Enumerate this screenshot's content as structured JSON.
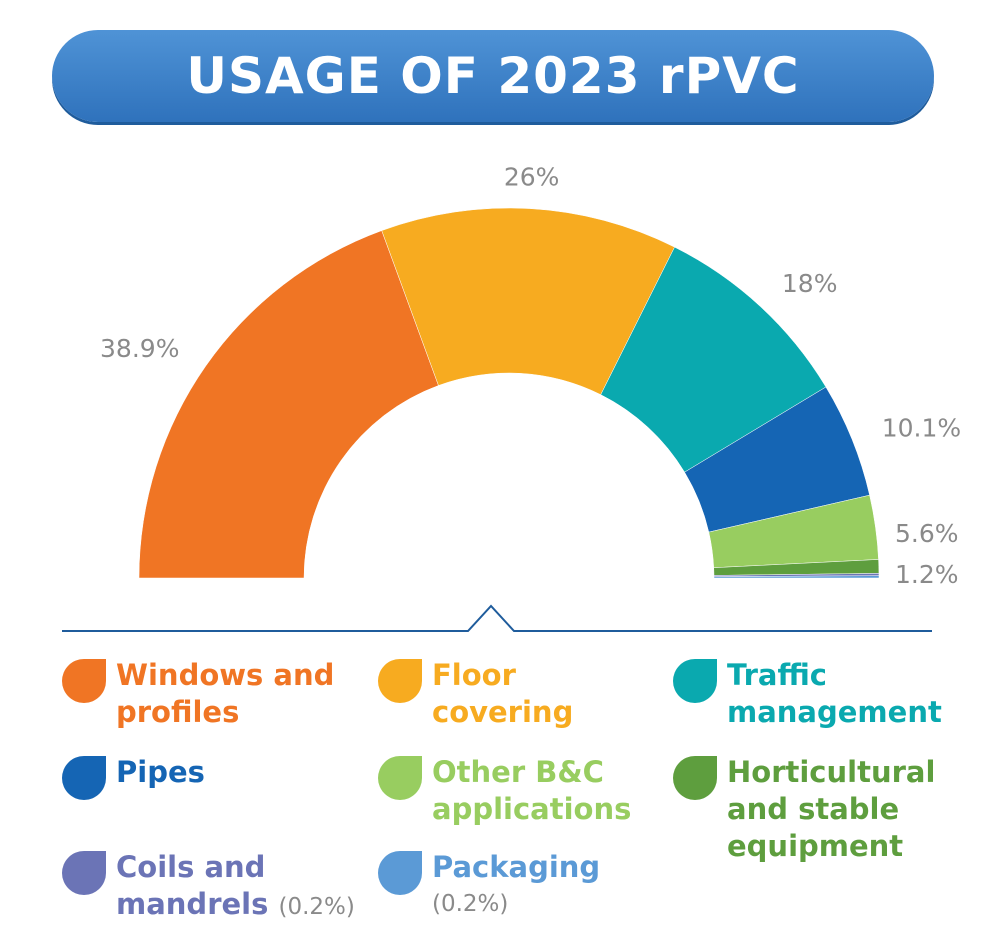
{
  "title": "USAGE OF 2023 rPVC",
  "chart_data": {
    "type": "pie",
    "style": "half-donut",
    "title": "USAGE OF 2023 rPVC",
    "slices": [
      {
        "name": "Windows and profiles",
        "value": 38.9,
        "label": "38.9%",
        "color": "#f07524"
      },
      {
        "name": "Floor covering",
        "value": 26,
        "label": "26%",
        "color": "#f7ab20"
      },
      {
        "name": "Traffic management",
        "value": 18,
        "label": "18%",
        "color": "#0aa9af"
      },
      {
        "name": "Pipes",
        "value": 10.1,
        "label": "10.1%",
        "color": "#1565b4"
      },
      {
        "name": "Other B&C applications",
        "value": 5.6,
        "label": "5.6%",
        "color": "#98cd60"
      },
      {
        "name": "Horticultural and stable equipment",
        "value": 1.2,
        "label": "1.2%",
        "color": "#5e9e3e"
      },
      {
        "name": "Coils and mandrels",
        "value": 0.2,
        "label": "",
        "color": "#6b74b6"
      },
      {
        "name": "Packaging",
        "value": 0.2,
        "label": "",
        "color": "#5b9ad6"
      }
    ]
  },
  "legend": [
    {
      "line1": "Windows and",
      "line2": "profiles",
      "line3": "",
      "sub": "",
      "color": "#f07524",
      "text_color": "#f07524"
    },
    {
      "line1": "Floor",
      "line2": "covering",
      "line3": "",
      "sub": "",
      "color": "#f7ab20",
      "text_color": "#f7ab20"
    },
    {
      "line1": "Traffic",
      "line2": "management",
      "line3": "",
      "sub": "",
      "color": "#0aa9af",
      "text_color": "#0aa9af"
    },
    {
      "line1": "Pipes",
      "line2": "",
      "line3": "",
      "sub": "",
      "color": "#1565b4",
      "text_color": "#1565b4"
    },
    {
      "line1": "Other B&C",
      "line2": "applications",
      "line3": "",
      "sub": "",
      "color": "#98cd60",
      "text_color": "#98cd60"
    },
    {
      "line1": "Horticultural",
      "line2": "and stable",
      "line3": "equipment",
      "sub": "",
      "color": "#5e9e3e",
      "text_color": "#5e9e3e"
    },
    {
      "line1": "Coils and",
      "line2": "mandrels",
      "line3": "",
      "sub": "(0.2%)",
      "color": "#6b74b6",
      "text_color": "#6b74b6"
    },
    {
      "line1": "Packaging",
      "line2": "",
      "line3": "",
      "sub": "(0.2%)",
      "color": "#5b9ad6",
      "text_color": "#5b9ad6"
    }
  ],
  "colors": {
    "divider": "#1f5c9c",
    "label_gray": "#8a8a8a",
    "banner": "#3a7fc6"
  }
}
